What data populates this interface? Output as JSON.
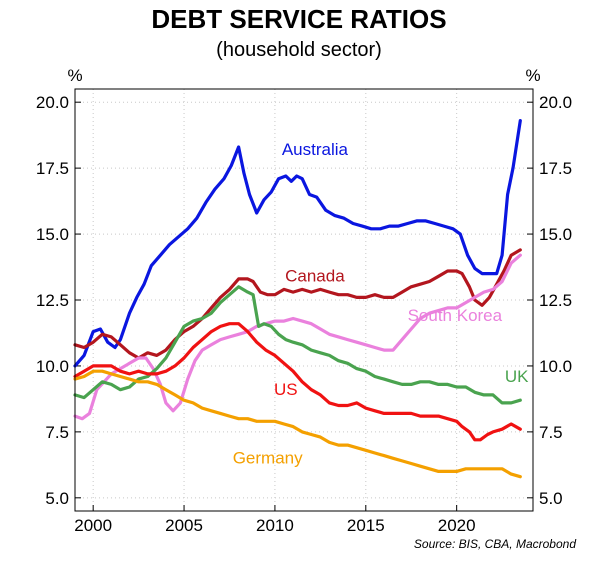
{
  "chart_data": {
    "type": "line",
    "title": "DEBT SERVICE RATIOS",
    "subtitle": "(household sector)",
    "ylabel_left": "%",
    "ylabel_right": "%",
    "ylim": [
      4.5,
      20.5
    ],
    "xlim": [
      1999,
      2024.2
    ],
    "yticks": [
      5.0,
      7.5,
      10.0,
      12.5,
      15.0,
      17.5,
      20.0
    ],
    "ytick_labels": [
      "5.0",
      "7.5",
      "10.0",
      "12.5",
      "15.0",
      "17.5",
      "20.0"
    ],
    "xticks": [
      2000,
      2005,
      2010,
      2015,
      2020
    ],
    "xtick_labels": [
      "2000",
      "2005",
      "2010",
      "2015",
      "2020"
    ],
    "grid": true,
    "source": "Source: BIS, CBA, Macrobond",
    "series": [
      {
        "name": "Australia",
        "color": "#0a16e0",
        "label_pos": [
          2012.2,
          18.0
        ],
        "x": [
          1999.0,
          1999.5,
          2000.0,
          2000.4,
          2000.8,
          2001.2,
          2001.5,
          2002.0,
          2002.4,
          2002.8,
          2003.2,
          2003.7,
          2004.2,
          2004.7,
          2005.2,
          2005.7,
          2006.2,
          2006.7,
          2007.2,
          2007.6,
          2008.0,
          2008.3,
          2008.6,
          2009.0,
          2009.4,
          2009.8,
          2010.2,
          2010.6,
          2010.9,
          2011.2,
          2011.5,
          2011.9,
          2012.3,
          2012.8,
          2013.3,
          2013.8,
          2014.3,
          2014.8,
          2015.3,
          2015.8,
          2016.3,
          2016.8,
          2017.3,
          2017.8,
          2018.3,
          2018.8,
          2019.3,
          2019.8,
          2020.2,
          2020.6,
          2021.0,
          2021.4,
          2021.8,
          2022.2,
          2022.5,
          2022.8,
          2023.1,
          2023.5
        ],
        "values": [
          10.0,
          10.4,
          11.3,
          11.4,
          10.9,
          10.7,
          11.0,
          12.0,
          12.6,
          13.1,
          13.8,
          14.2,
          14.6,
          14.9,
          15.2,
          15.6,
          16.2,
          16.7,
          17.1,
          17.6,
          18.3,
          17.3,
          16.5,
          15.8,
          16.3,
          16.6,
          17.1,
          17.2,
          17.0,
          17.2,
          17.1,
          16.5,
          16.4,
          15.9,
          15.7,
          15.6,
          15.4,
          15.3,
          15.2,
          15.2,
          15.3,
          15.3,
          15.4,
          15.5,
          15.5,
          15.4,
          15.3,
          15.2,
          15.0,
          14.2,
          13.7,
          13.5,
          13.5,
          13.5,
          14.2,
          16.5,
          17.5,
          19.3
        ]
      },
      {
        "name": "Canada",
        "color": "#b3161e",
        "label_pos": [
          2012.2,
          13.2
        ],
        "x": [
          1999.0,
          1999.5,
          2000.0,
          2000.5,
          2001.0,
          2001.5,
          2002.0,
          2002.5,
          2003.0,
          2003.5,
          2004.0,
          2004.5,
          2005.0,
          2005.5,
          2006.0,
          2006.5,
          2007.0,
          2007.5,
          2008.0,
          2008.5,
          2008.8,
          2009.2,
          2009.6,
          2010.0,
          2010.5,
          2011.0,
          2011.5,
          2012.0,
          2012.5,
          2013.0,
          2013.5,
          2014.0,
          2014.5,
          2015.0,
          2015.5,
          2016.0,
          2016.5,
          2017.0,
          2017.5,
          2018.0,
          2018.5,
          2019.0,
          2019.5,
          2020.0,
          2020.3,
          2020.7,
          2021.0,
          2021.4,
          2021.8,
          2022.2,
          2022.6,
          2023.0,
          2023.5
        ],
        "values": [
          10.8,
          10.7,
          10.9,
          11.2,
          11.1,
          10.8,
          10.5,
          10.3,
          10.5,
          10.4,
          10.6,
          11.0,
          11.3,
          11.5,
          11.8,
          12.2,
          12.6,
          12.9,
          13.3,
          13.3,
          13.2,
          12.8,
          12.7,
          12.7,
          12.9,
          12.8,
          12.9,
          12.8,
          12.9,
          12.8,
          12.7,
          12.7,
          12.6,
          12.6,
          12.7,
          12.6,
          12.6,
          12.8,
          13.0,
          13.1,
          13.2,
          13.4,
          13.6,
          13.6,
          13.5,
          13.0,
          12.5,
          12.3,
          12.6,
          13.1,
          13.6,
          14.2,
          14.4
        ]
      },
      {
        "name": "South Korea",
        "color": "#ea81dd",
        "label_pos": [
          2019.9,
          11.7
        ],
        "x": [
          1999.0,
          1999.4,
          1999.8,
          2000.2,
          2000.6,
          2001.0,
          2001.5,
          2002.0,
          2002.5,
          2002.9,
          2003.3,
          2003.7,
          2004.0,
          2004.4,
          2004.8,
          2005.2,
          2005.6,
          2006.0,
          2006.5,
          2007.0,
          2007.5,
          2008.0,
          2008.5,
          2009.0,
          2009.5,
          2010.0,
          2010.5,
          2011.0,
          2011.5,
          2012.0,
          2012.5,
          2013.0,
          2013.5,
          2014.0,
          2014.5,
          2015.0,
          2015.5,
          2016.0,
          2016.5,
          2017.0,
          2017.5,
          2018.0,
          2018.5,
          2019.0,
          2019.5,
          2020.0,
          2020.5,
          2021.0,
          2021.5,
          2022.0,
          2022.5,
          2023.0,
          2023.5
        ],
        "values": [
          8.1,
          8.0,
          8.2,
          9.1,
          9.4,
          9.7,
          9.9,
          10.1,
          10.3,
          10.3,
          9.9,
          9.3,
          8.6,
          8.3,
          8.6,
          9.5,
          10.2,
          10.6,
          10.8,
          11.0,
          11.1,
          11.2,
          11.3,
          11.5,
          11.6,
          11.7,
          11.7,
          11.8,
          11.7,
          11.6,
          11.4,
          11.2,
          11.1,
          11.0,
          10.9,
          10.8,
          10.7,
          10.6,
          10.6,
          11.0,
          11.4,
          11.8,
          12.0,
          12.1,
          12.2,
          12.2,
          12.4,
          12.6,
          12.8,
          12.9,
          13.2,
          13.9,
          14.2
        ]
      },
      {
        "name": "UK",
        "color": "#4aa34f",
        "label_pos": [
          2023.3,
          9.4
        ],
        "x": [
          1999.0,
          1999.5,
          2000.0,
          2000.5,
          2001.0,
          2001.5,
          2002.0,
          2002.5,
          2003.0,
          2003.5,
          2004.0,
          2004.5,
          2005.0,
          2005.5,
          2006.0,
          2006.5,
          2007.0,
          2007.5,
          2008.0,
          2008.5,
          2008.8,
          2009.1,
          2009.4,
          2009.8,
          2010.2,
          2010.6,
          2011.0,
          2011.5,
          2012.0,
          2012.5,
          2013.0,
          2013.5,
          2014.0,
          2014.5,
          2015.0,
          2015.5,
          2016.0,
          2016.5,
          2017.0,
          2017.5,
          2018.0,
          2018.5,
          2019.0,
          2019.5,
          2020.0,
          2020.5,
          2021.0,
          2021.5,
          2022.0,
          2022.5,
          2023.0,
          2023.5
        ],
        "values": [
          8.9,
          8.8,
          9.1,
          9.4,
          9.3,
          9.1,
          9.2,
          9.5,
          9.6,
          9.9,
          10.3,
          10.9,
          11.5,
          11.7,
          11.8,
          12.0,
          12.4,
          12.7,
          13.0,
          12.8,
          12.7,
          11.5,
          11.6,
          11.5,
          11.2,
          11.0,
          10.9,
          10.8,
          10.6,
          10.5,
          10.4,
          10.2,
          10.1,
          9.9,
          9.8,
          9.6,
          9.5,
          9.4,
          9.3,
          9.3,
          9.4,
          9.4,
          9.3,
          9.3,
          9.2,
          9.2,
          9.0,
          8.9,
          8.9,
          8.6,
          8.6,
          8.7
        ]
      },
      {
        "name": "US",
        "color": "#f01212",
        "label_pos": [
          2010.6,
          8.9
        ],
        "x": [
          1999.0,
          1999.5,
          2000.0,
          2000.5,
          2001.0,
          2001.5,
          2002.0,
          2002.5,
          2003.0,
          2003.5,
          2004.0,
          2004.5,
          2005.0,
          2005.5,
          2006.0,
          2006.5,
          2007.0,
          2007.5,
          2008.0,
          2008.5,
          2009.0,
          2009.5,
          2010.0,
          2010.5,
          2011.0,
          2011.5,
          2012.0,
          2012.5,
          2013.0,
          2013.5,
          2014.0,
          2014.5,
          2015.0,
          2015.5,
          2016.0,
          2016.5,
          2017.0,
          2017.5,
          2018.0,
          2018.5,
          2019.0,
          2019.5,
          2020.0,
          2020.3,
          2020.7,
          2021.0,
          2021.3,
          2021.7,
          2022.0,
          2022.5,
          2023.0,
          2023.5
        ],
        "values": [
          9.6,
          9.8,
          10.0,
          10.0,
          10.0,
          9.8,
          9.7,
          9.8,
          9.7,
          9.7,
          9.8,
          10.0,
          10.3,
          10.7,
          11.0,
          11.3,
          11.5,
          11.6,
          11.6,
          11.3,
          10.9,
          10.6,
          10.4,
          10.1,
          9.8,
          9.4,
          9.1,
          8.9,
          8.6,
          8.5,
          8.5,
          8.6,
          8.4,
          8.3,
          8.2,
          8.2,
          8.2,
          8.2,
          8.1,
          8.1,
          8.1,
          8.0,
          7.9,
          7.7,
          7.5,
          7.2,
          7.2,
          7.4,
          7.5,
          7.6,
          7.8,
          7.6
        ]
      },
      {
        "name": "Germany",
        "color": "#f4a000",
        "label_pos": [
          2009.6,
          6.3
        ],
        "x": [
          1999.0,
          1999.5,
          2000.0,
          2000.5,
          2001.0,
          2001.5,
          2002.0,
          2002.5,
          2003.0,
          2003.5,
          2004.0,
          2004.5,
          2005.0,
          2005.5,
          2006.0,
          2006.5,
          2007.0,
          2007.5,
          2008.0,
          2008.5,
          2009.0,
          2009.5,
          2010.0,
          2010.5,
          2011.0,
          2011.5,
          2012.0,
          2012.5,
          2013.0,
          2013.5,
          2014.0,
          2014.5,
          2015.0,
          2015.5,
          2016.0,
          2016.5,
          2017.0,
          2017.5,
          2018.0,
          2018.5,
          2019.0,
          2019.5,
          2020.0,
          2020.5,
          2021.0,
          2021.5,
          2022.0,
          2022.5,
          2023.0,
          2023.5
        ],
        "values": [
          9.5,
          9.6,
          9.8,
          9.8,
          9.7,
          9.6,
          9.5,
          9.4,
          9.4,
          9.3,
          9.1,
          8.9,
          8.7,
          8.6,
          8.4,
          8.3,
          8.2,
          8.1,
          8.0,
          8.0,
          7.9,
          7.9,
          7.9,
          7.8,
          7.7,
          7.5,
          7.4,
          7.3,
          7.1,
          7.0,
          7.0,
          6.9,
          6.8,
          6.7,
          6.6,
          6.5,
          6.4,
          6.3,
          6.2,
          6.1,
          6.0,
          6.0,
          6.0,
          6.1,
          6.1,
          6.1,
          6.1,
          6.1,
          5.9,
          5.8
        ]
      }
    ]
  }
}
